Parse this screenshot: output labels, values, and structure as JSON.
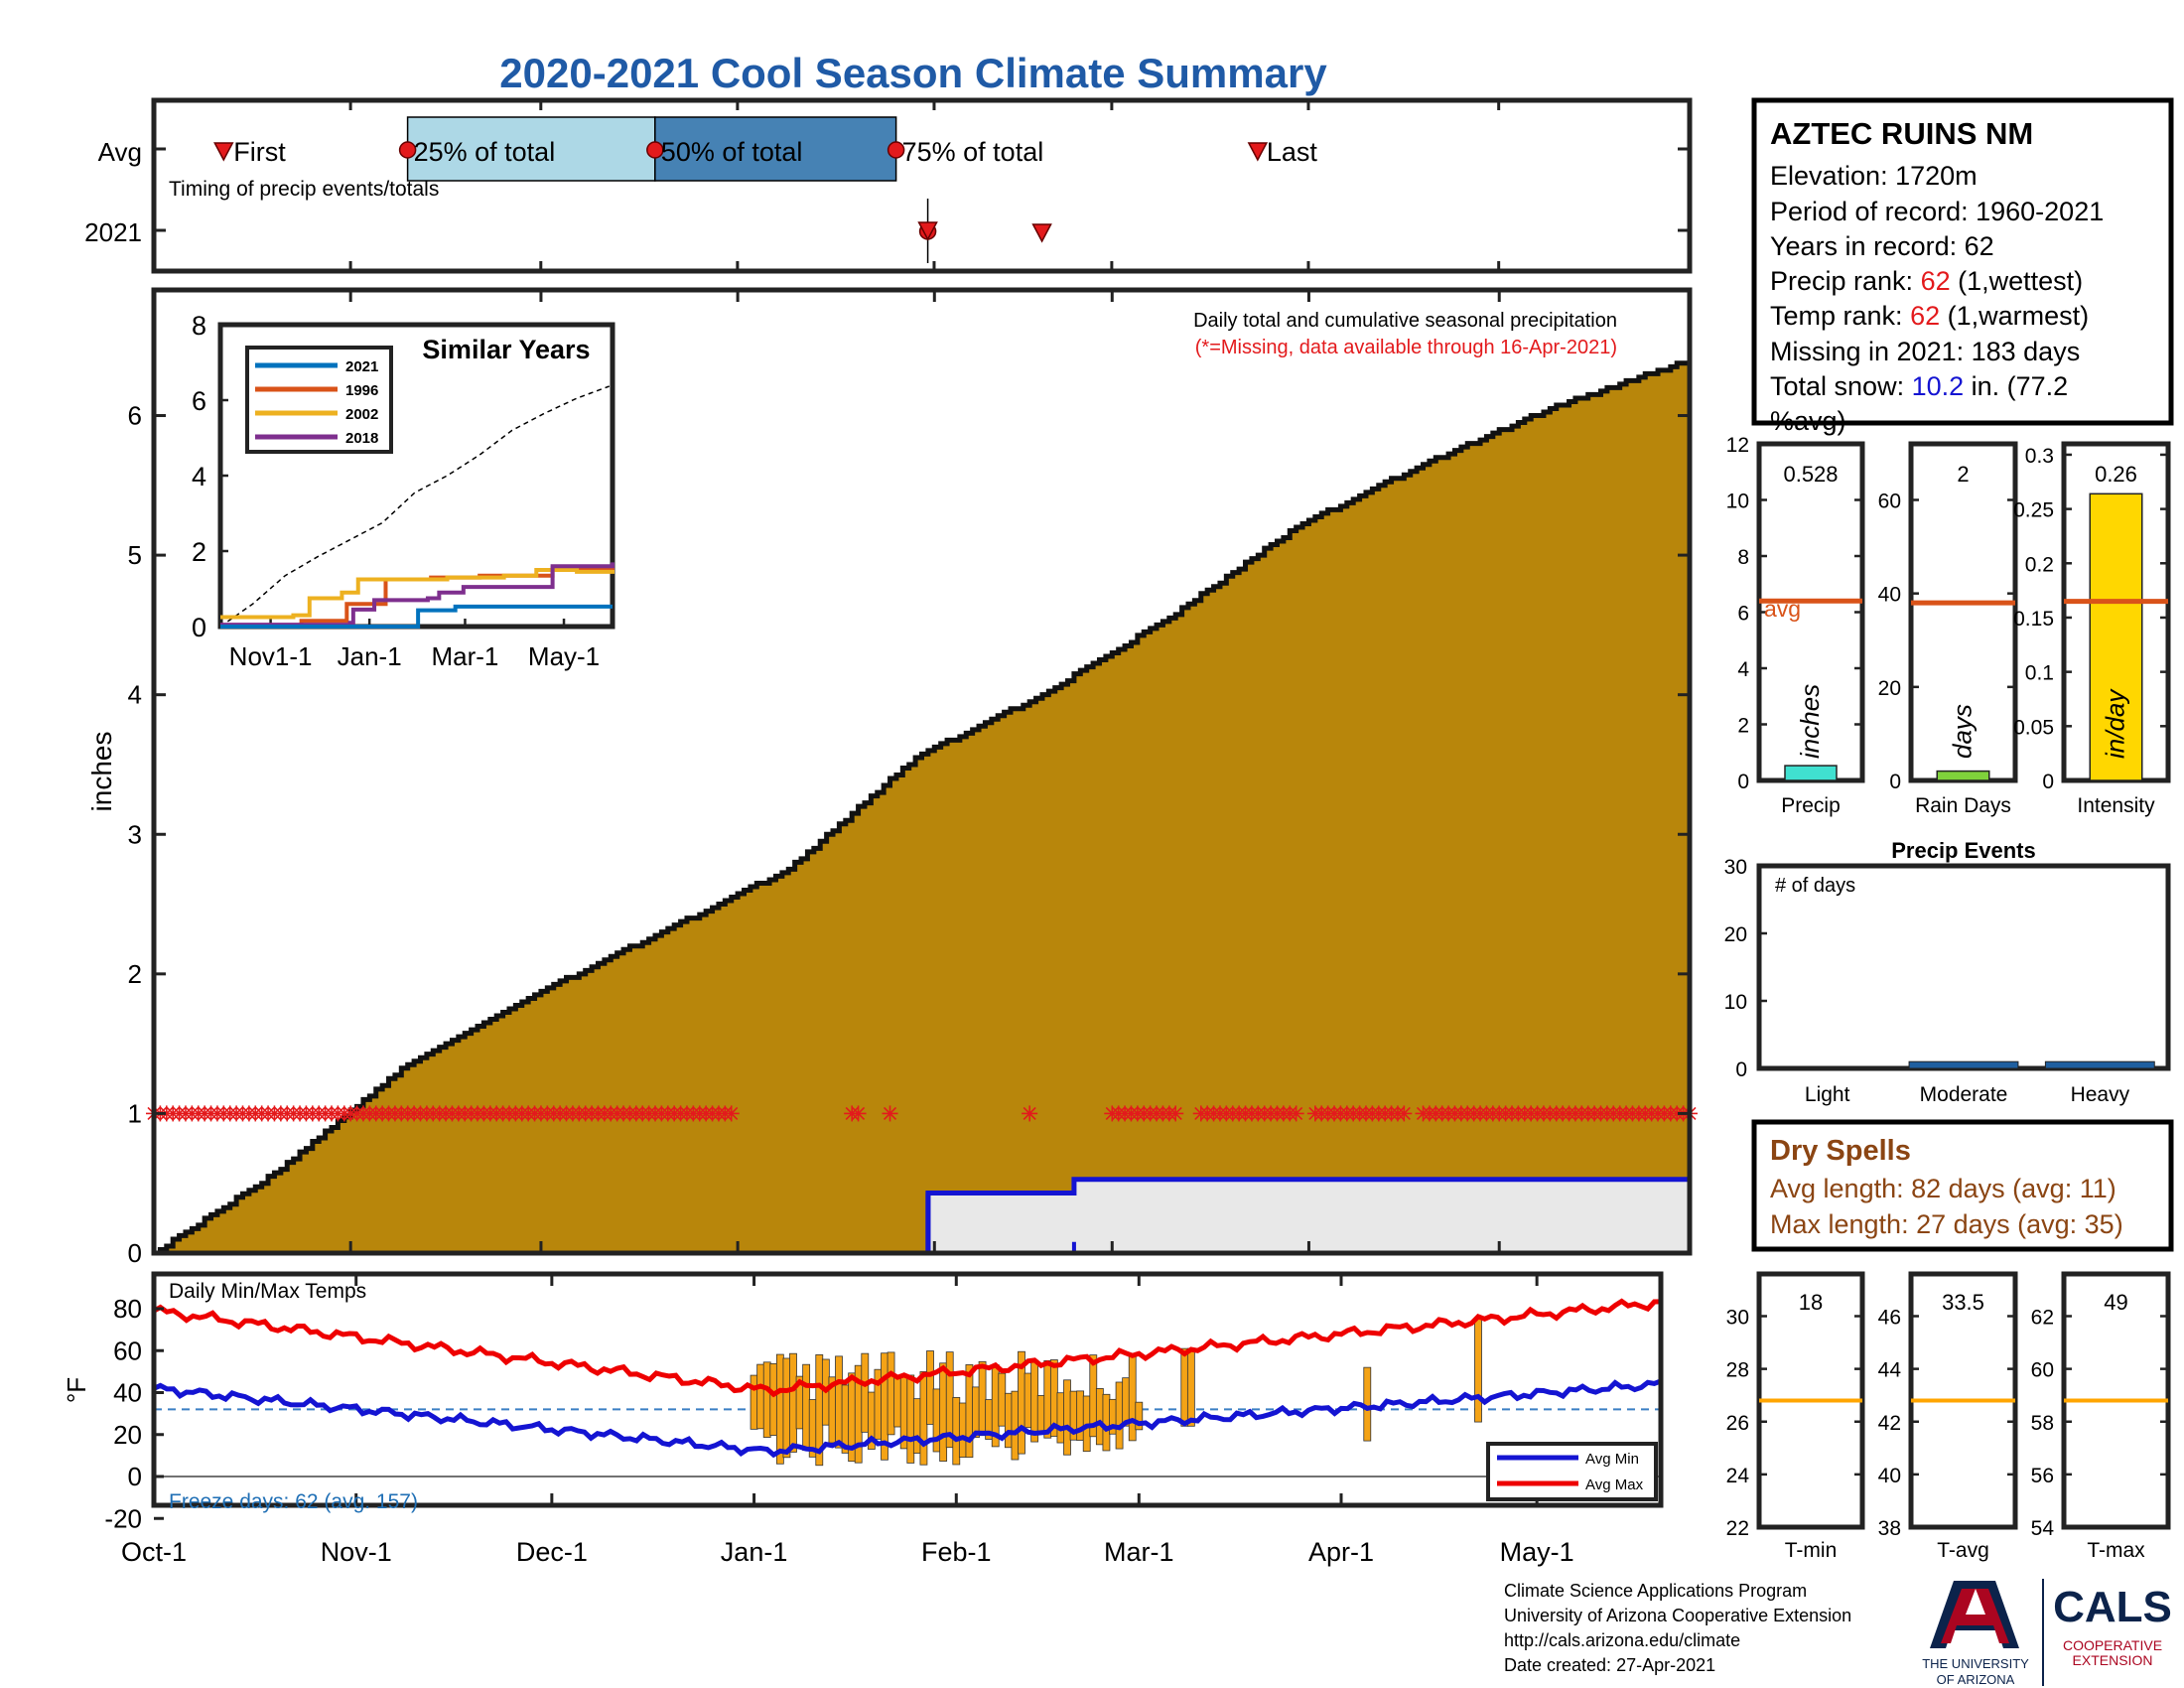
{
  "title": "2020-2021 Cool Season Climate Summary",
  "timing": {
    "row_avg": "Avg",
    "row_year": "2021",
    "caption": "Timing of precip events/totals",
    "first": "First",
    "p25": "25% of total",
    "p50": "50% of total",
    "p75": "75% of total",
    "last": "Last",
    "avg_first_day": 11,
    "avg_p25_day": 40,
    "avg_p50_day": 79,
    "avg_p75_day": 117,
    "avg_last_day": 174,
    "yr_first_day": 122,
    "yr_last_day": 140
  },
  "station": {
    "name": "AZTEC RUINS NM",
    "elevation": "Elevation: 1720m",
    "period": "Period of record: 1960-2021",
    "years": "Years in record: 62",
    "precip_rank_label": "Precip rank: ",
    "precip_rank_value": "62",
    "precip_rank_suffix": " (1,wettest)",
    "temp_rank_label": "Temp rank: ",
    "temp_rank_value": "62",
    "temp_rank_suffix": " (1,warmest)",
    "missing": "Missing in 2021: 183 days",
    "snow_label": "Total snow: ",
    "snow_value": "10.2",
    "snow_suffix_1": " in. (77.2",
    "snow_suffix_2": "%avg)"
  },
  "main_chart": {
    "ylabel": "inches",
    "caption": "Daily total and cumulative seasonal precipitation",
    "missing_note": "(*=Missing, data available through 16-Apr-2021)",
    "x_ticks": [
      "Oct-1",
      "Nov-1",
      "Dec-1",
      "Jan-1",
      "Feb-1",
      "Mar-1",
      "Apr-1",
      "May-1"
    ],
    "x_tick_days": [
      0,
      31,
      61,
      92,
      123,
      151,
      182,
      212
    ],
    "y_ticks": [
      "0",
      "1",
      "2",
      "3",
      "4",
      "5",
      "6"
    ],
    "ylim": [
      0,
      6.9
    ]
  },
  "inset": {
    "title": "Similar Years",
    "y_ticks": [
      "0",
      "2",
      "4",
      "6",
      "8"
    ],
    "x_ticks": [
      "Nov1-1",
      "Jan-1",
      "Mar-1",
      "May-1"
    ],
    "legend": [
      "2021",
      "1996",
      "2002",
      "2018"
    ]
  },
  "bar_panels": {
    "precip": {
      "label": "Precip",
      "value": "0.528",
      "unit": "inches",
      "avg_label": "avg",
      "y_ticks": [
        "0",
        "2",
        "4",
        "6",
        "8",
        "10",
        "12"
      ],
      "avg": 6.4,
      "bar": 0.528
    },
    "rain_days": {
      "label": "Rain Days",
      "value": "2",
      "unit": "days",
      "y_ticks": [
        "0",
        "20",
        "40",
        "60"
      ],
      "avg": 38,
      "bar": 2
    },
    "intensity": {
      "label": "Intensity",
      "value": "0.26",
      "unit": "in/day",
      "y_ticks": [
        "0",
        "0.05",
        "0.1",
        "0.15",
        "0.2",
        "0.25",
        "0.3"
      ],
      "avg": 0.165,
      "bar": 0.264
    }
  },
  "precip_events": {
    "title": "Precip Events",
    "ylabel": "# of days",
    "y_ticks": [
      "0",
      "10",
      "20",
      "30"
    ],
    "categories": [
      "Light",
      "Moderate",
      "Heavy"
    ],
    "values": [
      0,
      1,
      1
    ]
  },
  "dry_spells": {
    "title": "Dry Spells",
    "avg_length": "Avg length: 82 days (avg: 11)",
    "max_length": "Max length: 27 days (avg: 35)"
  },
  "temp_chart": {
    "title": "Daily Min/Max Temps",
    "ylabel": "°F",
    "y_ticks": [
      "80",
      "60",
      "40",
      "20",
      "0",
      "-20"
    ],
    "freeze": "Freeze days: 62 (avg. 157)",
    "legend_min": "Avg Min",
    "legend_max": "Avg Max"
  },
  "temp_panels": {
    "tmin": {
      "label": "T-min",
      "value": "18",
      "y_ticks": [
        "22",
        "24",
        "26",
        "28",
        "30"
      ],
      "avg": 26.8
    },
    "tavg": {
      "label": "T-avg",
      "value": "33.5",
      "y_ticks": [
        "38",
        "40",
        "42",
        "44",
        "46"
      ],
      "avg": 42.8
    },
    "tmax": {
      "label": "T-max",
      "value": "49",
      "y_ticks": [
        "54",
        "56",
        "58",
        "60",
        "62"
      ],
      "avg": 58.8
    }
  },
  "footer": {
    "line1": "Climate Science Applications Program",
    "line2": "University of Arizona Cooperative Extension",
    "line3": "http://cals.arizona.edu/climate",
    "line4": " Date created: 27-Apr-2021",
    "ua_line1": "THE UNIVERSITY",
    "ua_line2": "OF ARIZONA",
    "cals": "CALS",
    "coop1": "COOPERATIVE",
    "coop2": "EXTENSION"
  },
  "colors": {
    "title": "#1f5aa6",
    "fill": "#b8860b",
    "red": "#e31a1c",
    "blue": "#1414d2",
    "light_blue": "#add8e6",
    "mid_blue": "#4682b4",
    "orange_line": "#d95319",
    "temp_bar": "#f4a316",
    "brown_text": "#8b4513"
  },
  "chart_data": {
    "type": "area",
    "title": "2020-2021 Cool Season Climate Summary",
    "ylabel": "inches",
    "series": [
      {
        "name": "",
        "x": [
          0,
          20,
          40,
          60,
          80,
          100,
          120,
          140,
          160,
          180,
          200,
          220,
          242
        ],
        "values": [
          0,
          0.6,
          1.35,
          1.85,
          2.3,
          2.75,
          3.55,
          4.0,
          4.55,
          5.2,
          5.65,
          6.05,
          6.4
        ]
      },
      {
        "x": [
          0,
          122,
          122,
          145,
          145,
          242
        ],
        "values": [
          0,
          0,
          0.43,
          0.43,
          0.528,
          0.528
        ]
      }
    ],
    "missing_days": [
      0,
      91,
      110,
      116,
      138,
      150,
      160,
      183,
      194,
      242
    ]
  }
}
